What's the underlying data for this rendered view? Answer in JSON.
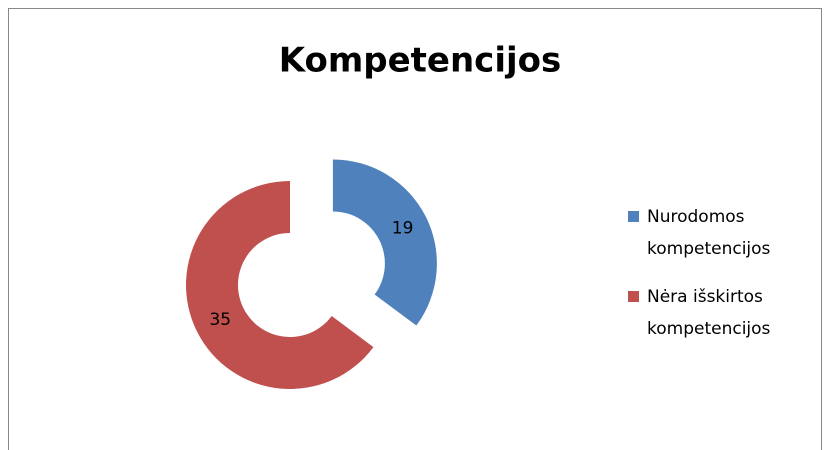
{
  "chart_data": {
    "type": "doughnut",
    "title": "Kompetencijos",
    "categories": [
      "Nurodomos kompetencijos",
      "Nėra išskirtos kompetencijos"
    ],
    "values": [
      19,
      35
    ],
    "colors": [
      "#4f81bd",
      "#c0504d"
    ],
    "legend": "right"
  }
}
